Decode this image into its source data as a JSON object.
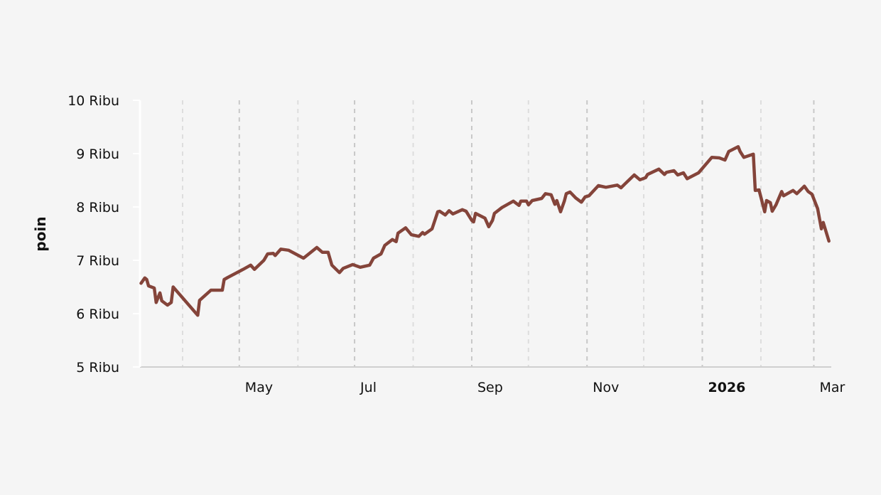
{
  "chart_data": {
    "type": "line",
    "title": "",
    "xlabel": "",
    "ylabel": "poin",
    "xlim": [
      "2025-03-10",
      "2026-03-10"
    ],
    "ylim": [
      5000,
      10000
    ],
    "y_ticks": [
      {
        "value": 5000,
        "label": "5 Ribu"
      },
      {
        "value": 6000,
        "label": "6 Ribu"
      },
      {
        "value": 7000,
        "label": "7 Ribu"
      },
      {
        "value": 8000,
        "label": "8 Ribu"
      },
      {
        "value": 9000,
        "label": "9 Ribu"
      },
      {
        "value": 10000,
        "label": "10 Ribu"
      }
    ],
    "x_ticks": [
      {
        "date": "2025-04-01",
        "label": "",
        "major": false
      },
      {
        "date": "2025-05-01",
        "label": "May",
        "major": true
      },
      {
        "date": "2025-06-01",
        "label": "",
        "major": false
      },
      {
        "date": "2025-07-01",
        "label": "Jul",
        "major": true
      },
      {
        "date": "2025-08-01",
        "label": "",
        "major": false
      },
      {
        "date": "2025-09-01",
        "label": "Sep",
        "major": true
      },
      {
        "date": "2025-10-01",
        "label": "",
        "major": false
      },
      {
        "date": "2025-11-01",
        "label": "Nov",
        "major": true
      },
      {
        "date": "2025-12-01",
        "label": "",
        "major": false
      },
      {
        "date": "2026-01-01",
        "label": "2026",
        "major": true,
        "bold": true
      },
      {
        "date": "2026-02-01",
        "label": "",
        "major": false
      },
      {
        "date": "2026-03-01",
        "label": "Mar",
        "major": true
      }
    ],
    "grid": "vertical dashed at month starts",
    "line_color": "#84443a",
    "background": "#f5f5f5",
    "series": [
      {
        "points": [
          [
            "2025-03-10",
            6570
          ],
          [
            "2025-03-12",
            6670
          ],
          [
            "2025-03-13",
            6640
          ],
          [
            "2025-03-14",
            6520
          ],
          [
            "2025-03-17",
            6480
          ],
          [
            "2025-03-18",
            6210
          ],
          [
            "2025-03-20",
            6390
          ],
          [
            "2025-03-21",
            6240
          ],
          [
            "2025-03-24",
            6160
          ],
          [
            "2025-03-26",
            6210
          ],
          [
            "2025-03-27",
            6500
          ],
          [
            "2025-04-09",
            5970
          ],
          [
            "2025-04-10",
            6250
          ],
          [
            "2025-04-16",
            6440
          ],
          [
            "2025-04-22",
            6440
          ],
          [
            "2025-04-23",
            6640
          ],
          [
            "2025-04-25",
            6680
          ],
          [
            "2025-05-03",
            6830
          ],
          [
            "2025-05-07",
            6910
          ],
          [
            "2025-05-09",
            6830
          ],
          [
            "2025-05-14",
            7000
          ],
          [
            "2025-05-16",
            7120
          ],
          [
            "2025-05-19",
            7130
          ],
          [
            "2025-05-20",
            7090
          ],
          [
            "2025-05-23",
            7210
          ],
          [
            "2025-05-27",
            7190
          ],
          [
            "2025-06-04",
            7040
          ],
          [
            "2025-06-11",
            7240
          ],
          [
            "2025-06-14",
            7150
          ],
          [
            "2025-06-17",
            7150
          ],
          [
            "2025-06-19",
            6910
          ],
          [
            "2025-06-23",
            6770
          ],
          [
            "2025-06-25",
            6850
          ],
          [
            "2025-06-30",
            6920
          ],
          [
            "2025-07-04",
            6870
          ],
          [
            "2025-07-09",
            6910
          ],
          [
            "2025-07-11",
            7040
          ],
          [
            "2025-07-15",
            7120
          ],
          [
            "2025-07-17",
            7280
          ],
          [
            "2025-07-21",
            7390
          ],
          [
            "2025-07-23",
            7350
          ],
          [
            "2025-07-24",
            7510
          ],
          [
            "2025-07-28",
            7610
          ],
          [
            "2025-07-31",
            7480
          ],
          [
            "2025-08-04",
            7450
          ],
          [
            "2025-08-06",
            7520
          ],
          [
            "2025-08-07",
            7490
          ],
          [
            "2025-08-11",
            7590
          ],
          [
            "2025-08-14",
            7910
          ],
          [
            "2025-08-15",
            7920
          ],
          [
            "2025-08-18",
            7850
          ],
          [
            "2025-08-20",
            7930
          ],
          [
            "2025-08-22",
            7870
          ],
          [
            "2025-08-27",
            7950
          ],
          [
            "2025-08-29",
            7920
          ],
          [
            "2025-09-01",
            7750
          ],
          [
            "2025-09-02",
            7720
          ],
          [
            "2025-09-03",
            7880
          ],
          [
            "2025-09-08",
            7790
          ],
          [
            "2025-09-10",
            7630
          ],
          [
            "2025-09-12",
            7750
          ],
          [
            "2025-09-13",
            7880
          ],
          [
            "2025-09-17",
            7990
          ],
          [
            "2025-09-23",
            8110
          ],
          [
            "2025-09-26",
            8030
          ],
          [
            "2025-09-27",
            8110
          ],
          [
            "2025-09-30",
            8110
          ],
          [
            "2025-10-01",
            8040
          ],
          [
            "2025-10-03",
            8120
          ],
          [
            "2025-10-08",
            8160
          ],
          [
            "2025-10-10",
            8250
          ],
          [
            "2025-10-13",
            8230
          ],
          [
            "2025-10-15",
            8050
          ],
          [
            "2025-10-16",
            8120
          ],
          [
            "2025-10-18",
            7910
          ],
          [
            "2025-10-20",
            8110
          ],
          [
            "2025-10-21",
            8250
          ],
          [
            "2025-10-23",
            8280
          ],
          [
            "2025-10-26",
            8170
          ],
          [
            "2025-10-29",
            8090
          ],
          [
            "2025-10-31",
            8190
          ],
          [
            "2025-11-02",
            8210
          ],
          [
            "2025-11-07",
            8400
          ],
          [
            "2025-11-11",
            8370
          ],
          [
            "2025-11-17",
            8410
          ],
          [
            "2025-11-19",
            8360
          ],
          [
            "2025-11-21",
            8430
          ],
          [
            "2025-11-26",
            8600
          ],
          [
            "2025-11-29",
            8510
          ],
          [
            "2025-12-02",
            8550
          ],
          [
            "2025-12-03",
            8610
          ],
          [
            "2025-12-09",
            8710
          ],
          [
            "2025-12-12",
            8610
          ],
          [
            "2025-12-13",
            8650
          ],
          [
            "2025-12-17",
            8680
          ],
          [
            "2025-12-19",
            8600
          ],
          [
            "2025-12-22",
            8640
          ],
          [
            "2025-12-24",
            8530
          ],
          [
            "2025-12-30",
            8640
          ],
          [
            "2026-01-06",
            8930
          ],
          [
            "2026-01-10",
            8920
          ],
          [
            "2026-01-13",
            8880
          ],
          [
            "2026-01-15",
            9040
          ],
          [
            "2026-01-20",
            9130
          ],
          [
            "2026-01-21",
            9040
          ],
          [
            "2026-01-23",
            8930
          ],
          [
            "2026-01-28",
            8990
          ],
          [
            "2026-01-29",
            8310
          ],
          [
            "2026-01-31",
            8320
          ],
          [
            "2026-02-03",
            7910
          ],
          [
            "2026-02-04",
            8120
          ],
          [
            "2026-02-06",
            8080
          ],
          [
            "2026-02-07",
            7920
          ],
          [
            "2026-02-09",
            8040
          ],
          [
            "2026-02-12",
            8290
          ],
          [
            "2026-02-13",
            8210
          ],
          [
            "2026-02-18",
            8310
          ],
          [
            "2026-02-20",
            8250
          ],
          [
            "2026-02-24",
            8390
          ],
          [
            "2026-02-26",
            8290
          ],
          [
            "2026-02-28",
            8240
          ],
          [
            "2026-03-03",
            7970
          ],
          [
            "2026-03-05",
            7590
          ],
          [
            "2026-03-06",
            7710
          ],
          [
            "2026-03-09",
            7360
          ]
        ]
      }
    ]
  }
}
